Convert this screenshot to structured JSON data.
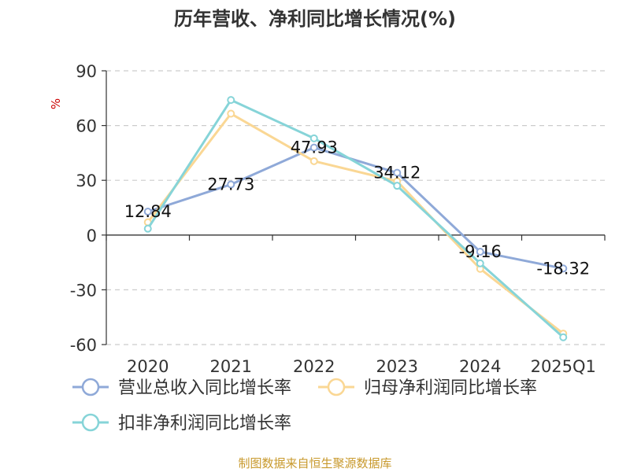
{
  "chart_data": {
    "type": "line",
    "title": "历年营收、净利同比增长情况(%)",
    "ylabel": "%",
    "ylim": [
      -60,
      90
    ],
    "yticks": [
      -60,
      -30,
      0,
      30,
      60,
      90
    ],
    "categories": [
      "2020",
      "2021",
      "2022",
      "2023",
      "2024",
      "2025Q1"
    ],
    "grid": true,
    "legend_position": "bottom-left",
    "source": "制图数据来自恒生聚源数据库",
    "colors": {
      "title": "#333333",
      "axis": "#333333",
      "grid": "#cccccc",
      "ylabel": "#cc0000",
      "source": "#c8992c"
    },
    "series": [
      {
        "name": "营业总收入同比增长率",
        "color": "#8fa9d8",
        "values": [
          12.84,
          27.73,
          47.93,
          34.12,
          -9.16,
          -18.32
        ],
        "labels": [
          "12.84",
          "27.73",
          "47.93",
          "34.12",
          "-9.16",
          "-18.32"
        ]
      },
      {
        "name": "归母净利润同比增长率",
        "color": "#fad794",
        "values": [
          7.0,
          66.5,
          40.5,
          29.5,
          -18.5,
          -54.0
        ]
      },
      {
        "name": "扣非净利润同比增长率",
        "color": "#86d4d8",
        "values": [
          3.5,
          74.0,
          53.0,
          27.0,
          -15.5,
          -56.0
        ]
      }
    ]
  }
}
